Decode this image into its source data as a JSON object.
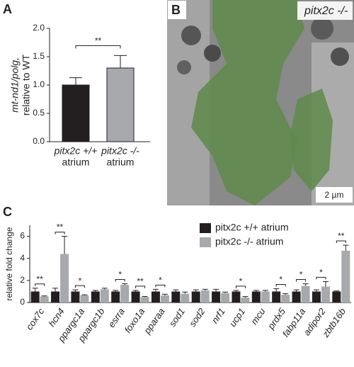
{
  "panels": [
    "A",
    "B",
    "C"
  ],
  "chart_data": [
    {
      "type": "bar",
      "ylabel_lines": [
        "mt-nd1/polg,",
        "relative to WT"
      ],
      "categories": [
        "pitx2c +/+",
        "pitx2c -/-"
      ],
      "category_sublabel": "atrium",
      "values": [
        1.0,
        1.3
      ],
      "errors": [
        0.13,
        0.22
      ],
      "colors": [
        "#231f20",
        "#a7a9ac"
      ],
      "significance": "**",
      "ylim": [
        0,
        2.0
      ],
      "yticks": [
        {
          "value": 0,
          "label": "0.0"
        },
        {
          "value": 0.5,
          "label": "0.5"
        },
        {
          "value": 1,
          "label": "1.0"
        },
        {
          "value": 1.5,
          "label": "1.5"
        },
        {
          "value": 2,
          "label": "2.0"
        }
      ]
    },
    {
      "type": "grouped-bar",
      "ylabel": "relative fold change",
      "categories": [
        "cox7c",
        "hcn4",
        "ppargc1a",
        "ppargc1b",
        "esrra",
        "foxo1a",
        "pparaa",
        "sod1",
        "sod2",
        "nrf1",
        "ucp1",
        "mcu",
        "prdx5",
        "fabp11a",
        "adipor2",
        "zbtb16b"
      ],
      "series": [
        {
          "name": "pitx2c +/+ atrium",
          "color": "#231f20",
          "values": [
            1.0,
            1.0,
            1.0,
            1.0,
            1.0,
            1.0,
            1.0,
            1.0,
            1.0,
            1.0,
            1.0,
            1.0,
            1.0,
            1.0,
            1.0,
            1.0
          ],
          "errors": [
            0.3,
            0.3,
            0.15,
            0.1,
            0.1,
            0.1,
            0.2,
            0.15,
            0.15,
            0.2,
            0.1,
            0.1,
            0.25,
            0.15,
            0.15,
            0.05
          ]
        },
        {
          "name": "pitx2c -/- atrium",
          "color": "#a7a9ac",
          "values": [
            0.55,
            4.4,
            0.65,
            1.2,
            1.6,
            0.5,
            0.65,
            0.8,
            1.1,
            0.85,
            0.45,
            1.0,
            0.7,
            1.5,
            1.45,
            4.7
          ],
          "errors": [
            0.05,
            1.6,
            0.05,
            0.1,
            0.1,
            0.05,
            0.1,
            0.15,
            0.1,
            0.1,
            0.1,
            0.1,
            0.1,
            0.2,
            0.45,
            0.5
          ]
        }
      ],
      "significance": [
        "**",
        "**",
        "*",
        null,
        "*",
        "**",
        "*",
        null,
        null,
        null,
        "*",
        null,
        "*",
        "*",
        "*",
        "**"
      ],
      "ylim": [
        0,
        7
      ],
      "yticks": [
        0,
        2,
        4,
        6
      ]
    }
  ],
  "image_panel": {
    "label": "pitx2c -/-",
    "scale_bar": "2 µm"
  }
}
